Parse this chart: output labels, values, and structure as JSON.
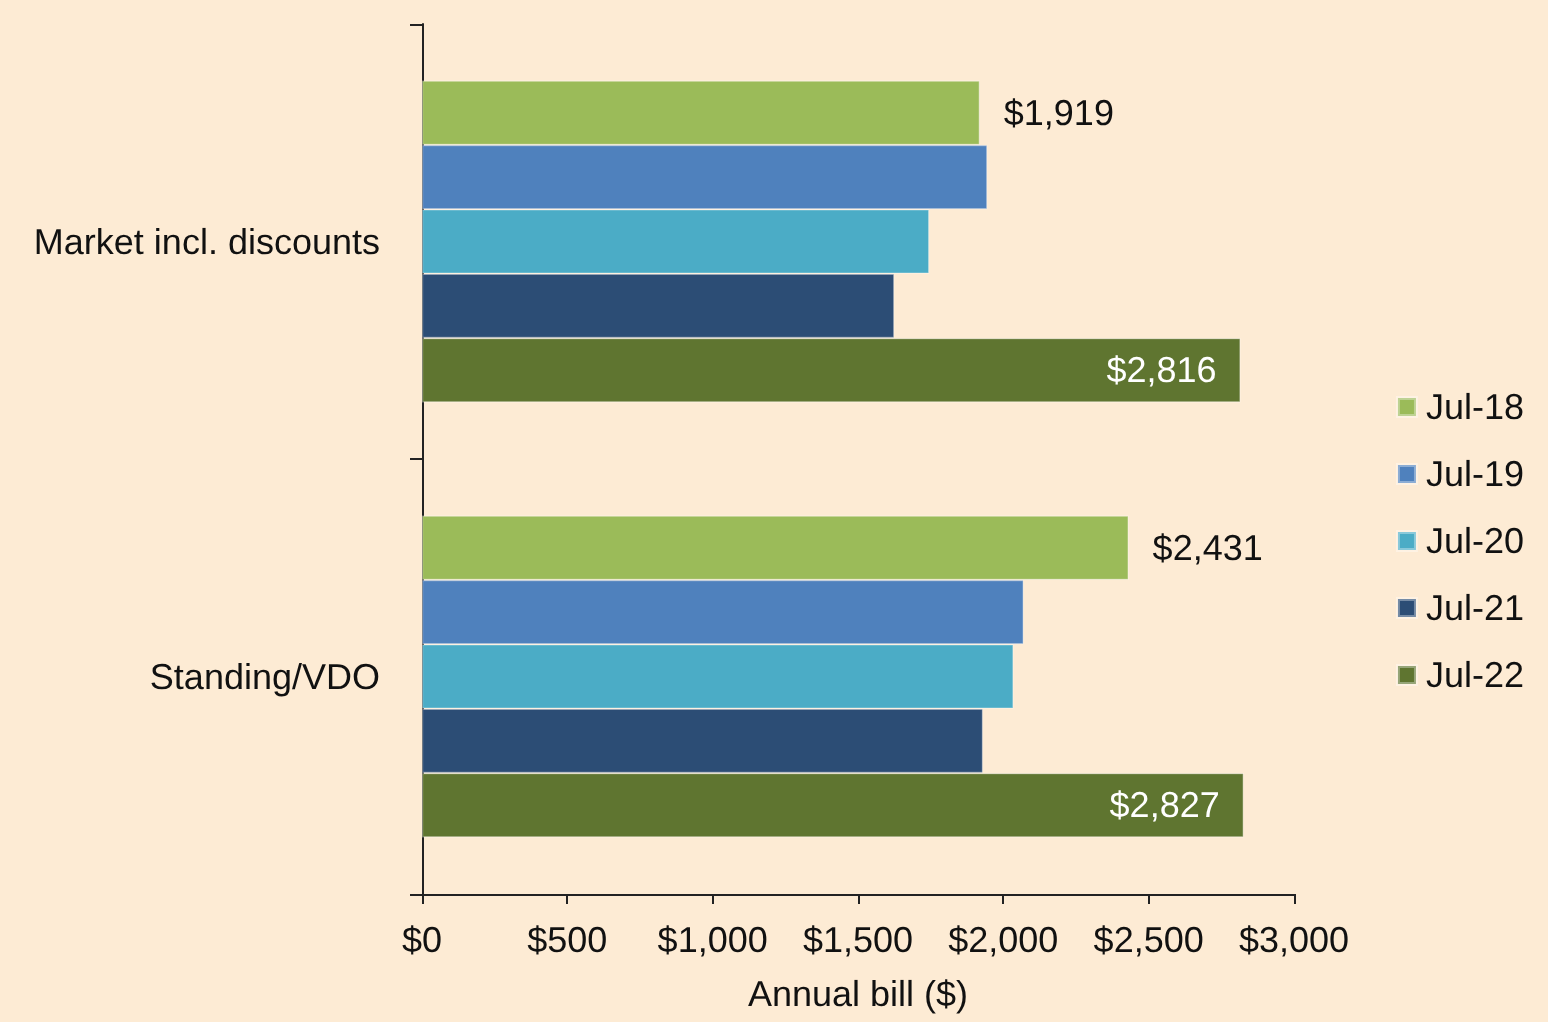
{
  "chart_data": {
    "type": "bar",
    "orientation": "horizontal",
    "xlabel": "Annual bill ($)",
    "categories": [
      "Market incl. discounts",
      "Standing/VDO"
    ],
    "series": [
      {
        "name": "Jul-18",
        "color": "#9bbb59",
        "values": [
          1919,
          2431
        ],
        "value_labels": [
          "$1,919",
          "$2,431"
        ]
      },
      {
        "name": "Jul-19",
        "color": "#4f81bd",
        "values": [
          1945,
          2070
        ]
      },
      {
        "name": "Jul-20",
        "color": "#4bacc6",
        "values": [
          1745,
          2035
        ]
      },
      {
        "name": "Jul-21",
        "color": "#2c4d75",
        "values": [
          1625,
          1930
        ]
      },
      {
        "name": "Jul-22",
        "color": "#5f7530",
        "values": [
          2816,
          2827
        ],
        "value_labels": [
          "$2,816",
          "$2,827"
        ]
      }
    ],
    "xlim": [
      0,
      3000
    ],
    "xticks": [
      {
        "value": 0,
        "label": "$0"
      },
      {
        "value": 500,
        "label": "$500"
      },
      {
        "value": 1000,
        "label": "$1,000"
      },
      {
        "value": 1500,
        "label": "$1,500"
      },
      {
        "value": 2000,
        "label": "$2,000"
      },
      {
        "value": 2500,
        "label": "$2,500"
      },
      {
        "value": 3000,
        "label": "$3,000"
      }
    ],
    "legend": "right",
    "grid": false
  }
}
